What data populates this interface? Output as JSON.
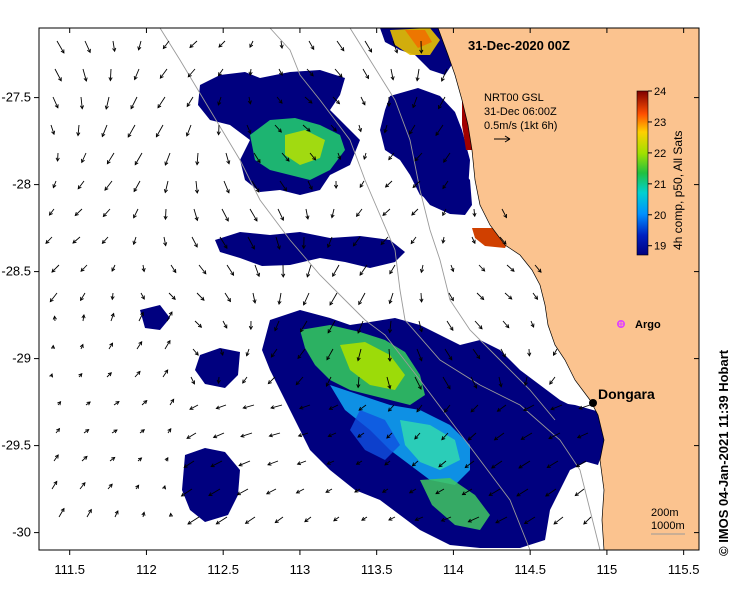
{
  "map": {
    "title": "31-Dec-2020 00Z",
    "lon_ticks": [
      "111.5",
      "112",
      "112.5",
      "113",
      "113.5",
      "114",
      "114.5",
      "115",
      "115.5"
    ],
    "lat_ticks": [
      "-27.5",
      "-28",
      "-28.5",
      "-29",
      "-29.5",
      "-30"
    ],
    "lon_range": [
      111.3,
      115.6
    ],
    "lat_range": [
      -27.1,
      -30.1
    ]
  },
  "current_legend": {
    "line1": "NRT00 GSL",
    "line2": "31-Dec 06:00Z",
    "line3": "0.5m/s (1kt 6h)"
  },
  "colorbar": {
    "label": "4h comp, p50, All Sats",
    "ticks": [
      "24",
      "23",
      "22",
      "21",
      "20",
      "19"
    ],
    "min": 18.7,
    "max": 24,
    "colors": [
      "#00007f",
      "#0050ff",
      "#00c8ff",
      "#20d060",
      "#a0e000",
      "#ffd000",
      "#ff6000",
      "#b00000",
      "#7f0000"
    ]
  },
  "places": {
    "dongara": "Dongara",
    "argo": "Argo"
  },
  "depth_legend": {
    "d1": "200m",
    "d2": "1000m"
  },
  "credit": "© IMOS 04-Jan-2021 11:39 Hobart",
  "colors": {
    "land": "#fbc38f",
    "sst_low": "#00007f",
    "argo": "#e040ff"
  }
}
